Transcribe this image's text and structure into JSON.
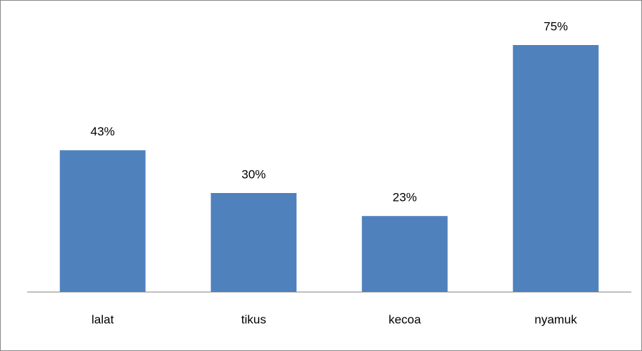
{
  "chart_data": {
    "type": "bar",
    "categories": [
      "lalat",
      "tikus",
      "kecoa",
      "nyamuk"
    ],
    "values": [
      43,
      30,
      23,
      75
    ],
    "value_labels": [
      "43%",
      "30%",
      "23%",
      "75%"
    ],
    "color": "#4f81bd"
  }
}
